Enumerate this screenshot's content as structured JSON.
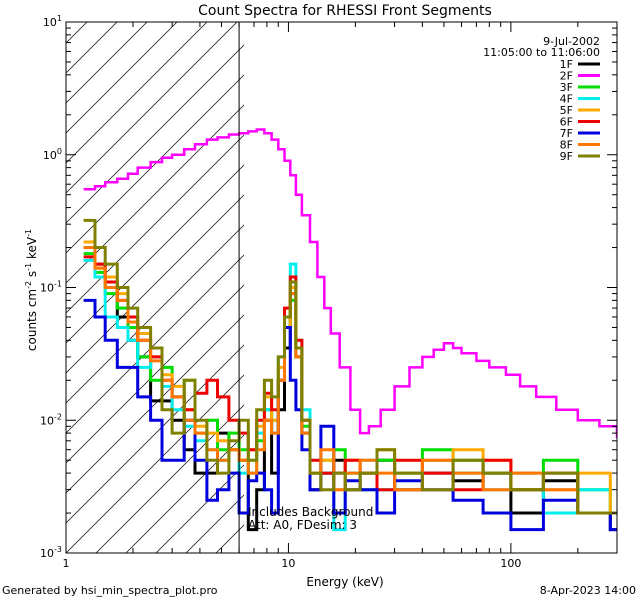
{
  "chart_data": {
    "type": "line",
    "title": "Count Spectra for RHESSI Front Segments",
    "xlabel": "Energy (keV)",
    "ylabel_parts": [
      "counts cm",
      "-2",
      " s",
      "-1",
      " keV",
      "-1"
    ],
    "xscale": "log",
    "yscale": "log",
    "xlim": [
      1,
      300
    ],
    "ylim": [
      0.001,
      10
    ],
    "x_tick_labels": [
      {
        "v": 1,
        "label": "1"
      },
      {
        "v": 10,
        "label": "10"
      },
      {
        "v": 100,
        "label": "100"
      }
    ],
    "y_tick_labels": [
      {
        "v": 0.001,
        "base": "10",
        "exp": "-3"
      },
      {
        "v": 0.01,
        "base": "10",
        "exp": "-2"
      },
      {
        "v": 0.1,
        "base": "10",
        "exp": "-1"
      },
      {
        "v": 1,
        "base": "10",
        "exp": "0"
      },
      {
        "v": 10,
        "base": "10",
        "exp": "1"
      }
    ],
    "date": "9-Jul-2002",
    "time_range": "11:05:00 to 11:06:00",
    "attenuator_boundary_keV": 6,
    "annotation": [
      "Includes Background",
      "Att: A0, FDesim: 3"
    ],
    "series": [
      {
        "name": "1F",
        "color": "#000000",
        "x": [
          1.2,
          1.35,
          1.5,
          1.7,
          1.9,
          2.1,
          2.4,
          2.7,
          3.0,
          3.4,
          3.8,
          4.3,
          4.8,
          5.4,
          6.0,
          6.6,
          7.2,
          7.8,
          8.4,
          9.0,
          9.6,
          10.2,
          10.8,
          11.5,
          12.5,
          14,
          16,
          18,
          21,
          25,
          30,
          40,
          55,
          75,
          100,
          140,
          200,
          280
        ],
        "y": [
          0.2,
          0.15,
          0.1,
          0.06,
          0.04,
          0.03,
          0.014,
          0.014,
          0.01,
          0.006,
          0.004,
          0.004,
          0.008,
          0.006,
          0.005,
          0.0015,
          0.003,
          0.01,
          0.004,
          0.012,
          0.035,
          0.09,
          0.03,
          0.008,
          0.003,
          0.004,
          0.005,
          0.003,
          0.004,
          0.005,
          0.003,
          0.004,
          0.0035,
          0.004,
          0.002,
          0.0035,
          0.002,
          0.0015
        ]
      },
      {
        "name": "2F",
        "color": "#ff00ff",
        "x": [
          1.2,
          1.35,
          1.5,
          1.7,
          1.9,
          2.1,
          2.4,
          2.7,
          3.0,
          3.4,
          3.8,
          4.3,
          4.8,
          5.4,
          6.0,
          6.6,
          7.2,
          7.8,
          8.4,
          9.0,
          9.6,
          10.2,
          10.8,
          11.5,
          12.5,
          13.5,
          14.5,
          15.5,
          17,
          19,
          21,
          23,
          26,
          30,
          35,
          40,
          45,
          50,
          55,
          60,
          70,
          80,
          95,
          110,
          130,
          160,
          200,
          250,
          300
        ],
        "y": [
          0.55,
          0.58,
          0.62,
          0.66,
          0.72,
          0.8,
          0.88,
          0.95,
          1.0,
          1.1,
          1.2,
          1.3,
          1.35,
          1.42,
          1.45,
          1.5,
          1.55,
          1.45,
          1.3,
          1.1,
          0.9,
          0.7,
          0.5,
          0.35,
          0.22,
          0.12,
          0.07,
          0.045,
          0.025,
          0.012,
          0.008,
          0.009,
          0.012,
          0.018,
          0.025,
          0.03,
          0.034,
          0.038,
          0.035,
          0.032,
          0.028,
          0.025,
          0.022,
          0.018,
          0.015,
          0.012,
          0.01,
          0.009,
          0.0075
        ]
      },
      {
        "name": "3F",
        "color": "#00dd00",
        "x": [
          1.2,
          1.35,
          1.5,
          1.7,
          1.9,
          2.1,
          2.4,
          2.7,
          3.0,
          3.4,
          3.8,
          4.3,
          4.8,
          5.4,
          6.0,
          6.6,
          7.2,
          7.8,
          8.4,
          9.0,
          9.6,
          10.2,
          10.8,
          11.5,
          12.5,
          14,
          16,
          18,
          21,
          25,
          30,
          40,
          55,
          75,
          100,
          140,
          200,
          280
        ],
        "y": [
          0.18,
          0.13,
          0.09,
          0.07,
          0.05,
          0.03,
          0.02,
          0.025,
          0.015,
          0.02,
          0.008,
          0.01,
          0.006,
          0.008,
          0.006,
          0.004,
          0.007,
          0.012,
          0.008,
          0.02,
          0.05,
          0.08,
          0.03,
          0.009,
          0.004,
          0.005,
          0.006,
          0.004,
          0.003,
          0.005,
          0.004,
          0.006,
          0.005,
          0.004,
          0.003,
          0.005,
          0.003,
          0.002
        ]
      },
      {
        "name": "4F",
        "color": "#00eeee",
        "x": [
          1.2,
          1.35,
          1.5,
          1.7,
          1.9,
          2.1,
          2.4,
          2.7,
          3.0,
          3.4,
          3.8,
          4.3,
          4.8,
          5.4,
          6.0,
          6.6,
          7.2,
          7.8,
          8.4,
          9.0,
          9.6,
          10.2,
          10.8,
          11.5,
          12.5,
          14,
          16,
          18,
          21,
          25,
          30,
          40,
          55,
          75,
          100,
          140,
          200,
          280
        ],
        "y": [
          0.16,
          0.12,
          0.06,
          0.05,
          0.04,
          0.025,
          0.03,
          0.018,
          0.012,
          0.009,
          0.007,
          0.006,
          0.005,
          0.006,
          0.004,
          0.005,
          0.008,
          0.012,
          0.01,
          0.03,
          0.06,
          0.15,
          0.04,
          0.012,
          0.005,
          0.004,
          0.0015,
          0.004,
          0.005,
          0.003,
          0.004,
          0.005,
          0.004,
          0.003,
          0.004,
          0.002,
          0.003,
          0.002
        ]
      },
      {
        "name": "5F",
        "color": "#ffaa00",
        "x": [
          1.2,
          1.35,
          1.5,
          1.7,
          1.9,
          2.1,
          2.4,
          2.7,
          3.0,
          3.4,
          3.8,
          4.3,
          4.8,
          5.4,
          6.0,
          6.6,
          7.2,
          7.8,
          8.4,
          9.0,
          9.6,
          10.2,
          10.8,
          11.5,
          12.5,
          14,
          16,
          18,
          21,
          25,
          30,
          40,
          55,
          75,
          100,
          140,
          200,
          280
        ],
        "y": [
          0.22,
          0.14,
          0.12,
          0.09,
          0.06,
          0.045,
          0.03,
          0.022,
          0.018,
          0.012,
          0.009,
          0.008,
          0.007,
          0.006,
          0.005,
          0.006,
          0.009,
          0.015,
          0.01,
          0.025,
          0.05,
          0.1,
          0.035,
          0.01,
          0.004,
          0.005,
          0.003,
          0.005,
          0.004,
          0.006,
          0.004,
          0.005,
          0.006,
          0.005,
          0.004,
          0.003,
          0.004,
          0.002
        ]
      },
      {
        "name": "6F",
        "color": "#ee0000",
        "x": [
          1.2,
          1.35,
          1.5,
          1.7,
          1.9,
          2.1,
          2.4,
          2.7,
          3.0,
          3.4,
          3.8,
          4.3,
          4.8,
          5.4,
          6.0,
          6.6,
          7.2,
          7.8,
          8.4,
          9.0,
          9.6,
          10.2,
          10.8,
          11.5,
          12.5,
          14,
          16,
          18,
          21,
          25,
          30,
          40,
          55,
          75,
          100,
          140,
          200,
          280
        ],
        "y": [
          0.17,
          0.15,
          0.11,
          0.08,
          0.06,
          0.04,
          0.03,
          0.02,
          0.015,
          0.012,
          0.016,
          0.02,
          0.015,
          0.01,
          0.008,
          0.006,
          0.01,
          0.016,
          0.012,
          0.02,
          0.07,
          0.12,
          0.04,
          0.01,
          0.005,
          0.004,
          0.004,
          0.005,
          0.004,
          0.003,
          0.005,
          0.004,
          0.003,
          0.005,
          0.003,
          0.004,
          0.002,
          0.002
        ]
      },
      {
        "name": "7F",
        "color": "#0000dd",
        "x": [
          1.2,
          1.35,
          1.5,
          1.7,
          1.9,
          2.1,
          2.4,
          2.7,
          3.0,
          3.4,
          3.8,
          4.3,
          4.8,
          5.4,
          6.0,
          6.6,
          7.2,
          7.8,
          8.4,
          9.0,
          9.6,
          10.2,
          10.8,
          11.5,
          12.5,
          14,
          16,
          18,
          21,
          25,
          30,
          40,
          55,
          75,
          100,
          140,
          200,
          280
        ],
        "y": [
          0.08,
          0.06,
          0.04,
          0.025,
          0.025,
          0.015,
          0.01,
          0.005,
          0.005,
          0.01,
          0.005,
          0.0025,
          0.003,
          0.004,
          0.002,
          0.0035,
          0.004,
          0.003,
          0.002,
          0.02,
          0.05,
          0.02,
          0.012,
          0.006,
          0.003,
          0.009,
          0.002,
          0.0035,
          0.003,
          0.002,
          0.0035,
          0.003,
          0.0025,
          0.002,
          0.0015,
          0.0025,
          0.002,
          0.0015
        ]
      },
      {
        "name": "8F",
        "color": "#ff7700",
        "x": [
          1.2,
          1.35,
          1.5,
          1.7,
          1.9,
          2.1,
          2.4,
          2.7,
          3.0,
          3.4,
          3.8,
          4.3,
          4.8,
          5.4,
          6.0,
          6.6,
          7.2,
          7.8,
          8.4,
          9.0,
          9.6,
          10.2,
          10.8,
          11.5,
          12.5,
          14,
          16,
          18,
          21,
          25,
          30,
          40,
          55,
          75,
          100,
          140,
          200,
          280
        ],
        "y": [
          0.2,
          0.14,
          0.1,
          0.08,
          0.055,
          0.04,
          0.028,
          0.02,
          0.015,
          0.01,
          0.008,
          0.006,
          0.005,
          0.006,
          0.005,
          0.004,
          0.006,
          0.01,
          0.008,
          0.02,
          0.06,
          0.09,
          0.03,
          0.008,
          0.004,
          0.006,
          0.003,
          0.004,
          0.005,
          0.004,
          0.003,
          0.005,
          0.004,
          0.003,
          0.004,
          0.003,
          0.002,
          0.002
        ]
      },
      {
        "name": "9F",
        "color": "#808000",
        "x": [
          1.2,
          1.35,
          1.5,
          1.7,
          1.9,
          2.1,
          2.4,
          2.7,
          3.0,
          3.4,
          3.8,
          4.3,
          4.8,
          5.4,
          6.0,
          6.6,
          7.2,
          7.8,
          8.4,
          9.0,
          9.6,
          10.2,
          10.8,
          11.5,
          12.5,
          14,
          16,
          18,
          21,
          25,
          30,
          40,
          55,
          75,
          100,
          140,
          200,
          280
        ],
        "y": [
          0.32,
          0.2,
          0.15,
          0.1,
          0.07,
          0.05,
          0.035,
          0.012,
          0.008,
          0.02,
          0.01,
          0.005,
          0.004,
          0.007,
          0.01,
          0.005,
          0.012,
          0.02,
          0.015,
          0.03,
          0.06,
          0.11,
          0.035,
          0.01,
          0.004,
          0.003,
          0.004,
          0.003,
          0.004,
          0.006,
          0.004,
          0.003,
          0.005,
          0.004,
          0.003,
          0.004,
          0.002,
          0.002
        ]
      }
    ]
  },
  "footer": {
    "generated_by": "Generated by hsi_min_spectra_plot.pro",
    "timestamp": "8-Apr-2023 14:00"
  }
}
